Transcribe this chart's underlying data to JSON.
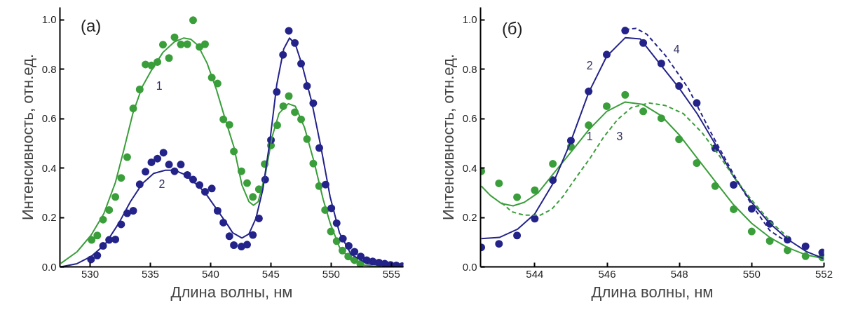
{
  "chart_data": [
    {
      "type": "line",
      "xlabel": "Длина волны, нм",
      "ylabel": "Интенсивность, отн.ед.",
      "xlim": [
        527.5,
        556
      ],
      "xticks": [
        530,
        535,
        540,
        545,
        550,
        555
      ],
      "ylim": [
        0,
        1.05
      ],
      "yticks": [
        {
          "value": 0,
          "label": "0.0"
        },
        {
          "value": 0.2,
          "label": "0.2"
        },
        {
          "value": 0.4,
          "label": "0.4"
        },
        {
          "value": 0.6,
          "label": "0.6"
        },
        {
          "value": 0.8,
          "label": "0.8"
        },
        {
          "value": 1,
          "label": "1.0"
        }
      ],
      "grid": false,
      "annotations": [
        "(a)",
        "1",
        "2"
      ],
      "series": [
        {
          "type": "scatter",
          "marker": "circle",
          "color": "#3a9e3a",
          "x": [
            530.13,
            530.6,
            531.08,
            531.58,
            532.1,
            532.58,
            533.08,
            533.58,
            534.12,
            534.6,
            535.09,
            535.59,
            536.05,
            536.55,
            537.01,
            537.53,
            538.07,
            538.55,
            539.08,
            539.54,
            540.1,
            540.58,
            541.06,
            541.56,
            541.93,
            542.56,
            543.03,
            543.51,
            544.01,
            544.49,
            545.01,
            545.53,
            546.03,
            546.49,
            546.99,
            547.51,
            548.0,
            548.52,
            549.0,
            549.5,
            549.98,
            550.46,
            550.94,
            551.42,
            551.94,
            552.42
          ],
          "values": [
            0.109,
            0.127,
            0.191,
            0.23,
            0.283,
            0.36,
            0.444,
            0.641,
            0.718,
            0.819,
            0.815,
            0.829,
            0.899,
            0.845,
            0.929,
            0.9,
            0.901,
            0.998,
            0.89,
            0.901,
            0.766,
            0.742,
            0.597,
            0.575,
            0.467,
            0.387,
            0.339,
            0.283,
            0.314,
            0.416,
            0.491,
            0.573,
            0.65,
            0.691,
            0.626,
            0.597,
            0.517,
            0.418,
            0.327,
            0.23,
            0.143,
            0.104,
            0.066,
            0.042,
            0.027,
            0.012
          ]
        },
        {
          "type": "scatter",
          "marker": "circle",
          "color": "#23238a",
          "x": [
            530.08,
            530.6,
            531.08,
            531.58,
            532.1,
            532.58,
            533.08,
            533.58,
            534.12,
            534.6,
            535.09,
            535.59,
            536.09,
            536.55,
            537.01,
            537.53,
            538.07,
            538.55,
            539.08,
            539.54,
            540.1,
            540.58,
            541.06,
            541.56,
            541.93,
            542.56,
            543.03,
            543.51,
            544.01,
            544.53,
            545.01,
            545.49,
            546.01,
            546.49,
            546.99,
            547.51,
            548.0,
            548.52,
            549.02,
            549.54,
            550.02,
            550.46,
            550.98,
            551.46,
            551.94,
            552.46,
            552.95,
            553.45,
            553.97,
            554.45,
            554.93,
            555.41,
            555.9
          ],
          "values": [
            0.03,
            0.046,
            0.085,
            0.109,
            0.111,
            0.172,
            0.217,
            0.227,
            0.334,
            0.385,
            0.423,
            0.438,
            0.462,
            0.414,
            0.387,
            0.414,
            0.372,
            0.353,
            0.331,
            0.304,
            0.317,
            0.227,
            0.179,
            0.124,
            0.088,
            0.082,
            0.09,
            0.129,
            0.196,
            0.353,
            0.513,
            0.708,
            0.858,
            0.955,
            0.906,
            0.822,
            0.732,
            0.662,
            0.481,
            0.333,
            0.237,
            0.177,
            0.114,
            0.085,
            0.061,
            0.042,
            0.027,
            0.022,
            0.017,
            0.013,
            0.008,
            0.006,
            0.003
          ]
        },
        {
          "line_style": "solid",
          "color": "#3a9e3a",
          "x": [
            527.57,
            528.92,
            530.08,
            531.14,
            532.1,
            532.77,
            533.55,
            534.32,
            535.09,
            536.05,
            537.01,
            537.78,
            538.36,
            538.94,
            539.71,
            540.48,
            541.25,
            541.93,
            542.6,
            543.18,
            543.56,
            543.95,
            544.53,
            545.1,
            545.68,
            546.45,
            547.03,
            547.8,
            548.57,
            549.34,
            549.92,
            550.69,
            551.65,
            552.61,
            553.96
          ],
          "values": [
            0.014,
            0.061,
            0.128,
            0.215,
            0.341,
            0.467,
            0.621,
            0.728,
            0.795,
            0.868,
            0.911,
            0.926,
            0.921,
            0.897,
            0.824,
            0.718,
            0.592,
            0.486,
            0.331,
            0.264,
            0.249,
            0.264,
            0.37,
            0.525,
            0.621,
            0.66,
            0.65,
            0.563,
            0.428,
            0.273,
            0.177,
            0.08,
            0.027,
            0.008,
            0.001
          ]
        },
        {
          "line_style": "solid",
          "color": "#23238a",
          "x": [
            527.57,
            528.92,
            530.08,
            531.23,
            532.39,
            533.35,
            534.32,
            535.28,
            536.24,
            537.01,
            537.78,
            538.55,
            539.52,
            540.48,
            541.45,
            541.83,
            542.6,
            543.18,
            543.76,
            544.33,
            544.91,
            545.49,
            546.07,
            546.55,
            547.03,
            547.61,
            548.38,
            549.15,
            549.92,
            550.69,
            551.65,
            553.0,
            554.93,
            556.0
          ],
          "values": [
            0,
            0.013,
            0.042,
            0.09,
            0.177,
            0.264,
            0.336,
            0.378,
            0.391,
            0.391,
            0.375,
            0.346,
            0.302,
            0.235,
            0.167,
            0.138,
            0.117,
            0.133,
            0.196,
            0.312,
            0.505,
            0.737,
            0.882,
            0.926,
            0.901,
            0.814,
            0.67,
            0.486,
            0.283,
            0.138,
            0.051,
            0.013,
            0.001,
            0
          ]
        }
      ]
    },
    {
      "type": "line",
      "xlabel": "Длина волны, нм",
      "ylabel": "Интенсивность, отн.ед.",
      "xlim": [
        542.5,
        552
      ],
      "xticks": [
        544,
        546,
        548,
        550,
        552
      ],
      "ylim": [
        0,
        1.05
      ],
      "yticks": [
        {
          "value": 0,
          "label": "0.0"
        },
        {
          "value": 0.2,
          "label": "0.2"
        },
        {
          "value": 0.4,
          "label": "0.4"
        },
        {
          "value": 0.6,
          "label": "0.6"
        },
        {
          "value": 0.8,
          "label": "0.8"
        },
        {
          "value": 1,
          "label": "1.0"
        }
      ],
      "grid": false,
      "annotations": [
        "(б)",
        "1",
        "2",
        "3",
        "4"
      ],
      "series": [
        {
          "type": "scatter",
          "marker": "circle",
          "color": "#3a9e3a",
          "x": [
            542.52,
            543.01,
            543.51,
            544.0,
            544.5,
            545.0,
            545.49,
            545.99,
            546.5,
            547.0,
            547.5,
            547.99,
            548.48,
            548.99,
            549.5,
            550.0,
            550.5,
            550.99,
            551.49,
            551.95
          ],
          "values": [
            0.387,
            0.338,
            0.282,
            0.31,
            0.417,
            0.486,
            0.573,
            0.65,
            0.696,
            0.629,
            0.601,
            0.516,
            0.42,
            0.327,
            0.233,
            0.143,
            0.105,
            0.067,
            0.043,
            0.039
          ]
        },
        {
          "type": "scatter",
          "marker": "circle",
          "color": "#23238a",
          "x": [
            542.52,
            543.01,
            543.51,
            544.0,
            544.5,
            545.0,
            545.49,
            545.99,
            546.5,
            547.0,
            547.5,
            547.99,
            548.48,
            548.99,
            549.5,
            550.0,
            550.5,
            550.99,
            551.49,
            551.95
          ],
          "values": [
            0.079,
            0.093,
            0.127,
            0.195,
            0.351,
            0.511,
            0.71,
            0.859,
            0.956,
            0.906,
            0.823,
            0.732,
            0.663,
            0.48,
            0.332,
            0.235,
            0.174,
            0.11,
            0.083,
            0.058
          ]
        },
        {
          "line_style": "solid",
          "color": "#3a9e3a",
          "x": [
            542.52,
            542.77,
            543.08,
            543.4,
            543.71,
            544.09,
            544.5,
            544.97,
            545.49,
            545.99,
            546.5,
            546.98,
            547.5,
            547.99,
            548.49,
            548.99,
            549.5,
            550.0,
            550.5,
            551.01,
            551.51,
            551.98
          ],
          "values": [
            0.327,
            0.289,
            0.256,
            0.247,
            0.261,
            0.299,
            0.374,
            0.459,
            0.554,
            0.629,
            0.667,
            0.658,
            0.611,
            0.535,
            0.44,
            0.346,
            0.251,
            0.176,
            0.119,
            0.077,
            0.048,
            0.034
          ]
        },
        {
          "line_style": "solid",
          "color": "#23238a",
          "x": [
            542.52,
            543.02,
            543.52,
            544.0,
            544.5,
            544.97,
            545.49,
            545.99,
            546.5,
            546.92,
            547.5,
            547.99,
            548.49,
            548.99,
            549.5,
            550.0,
            550.5,
            551.01,
            551.51,
            551.98
          ],
          "values": [
            0.114,
            0.119,
            0.152,
            0.214,
            0.336,
            0.497,
            0.705,
            0.852,
            0.927,
            0.922,
            0.814,
            0.724,
            0.62,
            0.497,
            0.365,
            0.261,
            0.176,
            0.11,
            0.062,
            0.034
          ]
        },
        {
          "line_style": "dashed",
          "color": "#3a9e3a",
          "x": [
            543.08,
            543.36,
            543.71,
            544.15,
            544.47,
            544.78,
            545.16,
            545.53,
            545.91,
            546.29,
            546.67,
            547.17,
            547.61,
            548.11,
            548.62,
            549.06,
            549.5,
            550.0,
            550.5,
            551.01
          ],
          "values": [
            0.26,
            0.223,
            0.209,
            0.209,
            0.233,
            0.285,
            0.365,
            0.44,
            0.526,
            0.596,
            0.644,
            0.663,
            0.653,
            0.62,
            0.544,
            0.459,
            0.365,
            0.27,
            0.185,
            0.119
          ]
        },
        {
          "line_style": "dashed",
          "color": "#23238a",
          "x": [
            546.5,
            546.8,
            547.1,
            547.61,
            548.24,
            548.87,
            549.5,
            550.0,
            550.5,
            551.07
          ],
          "values": [
            0.96,
            0.965,
            0.941,
            0.856,
            0.724,
            0.544,
            0.374,
            0.251,
            0.147,
            0.091
          ]
        }
      ]
    }
  ]
}
